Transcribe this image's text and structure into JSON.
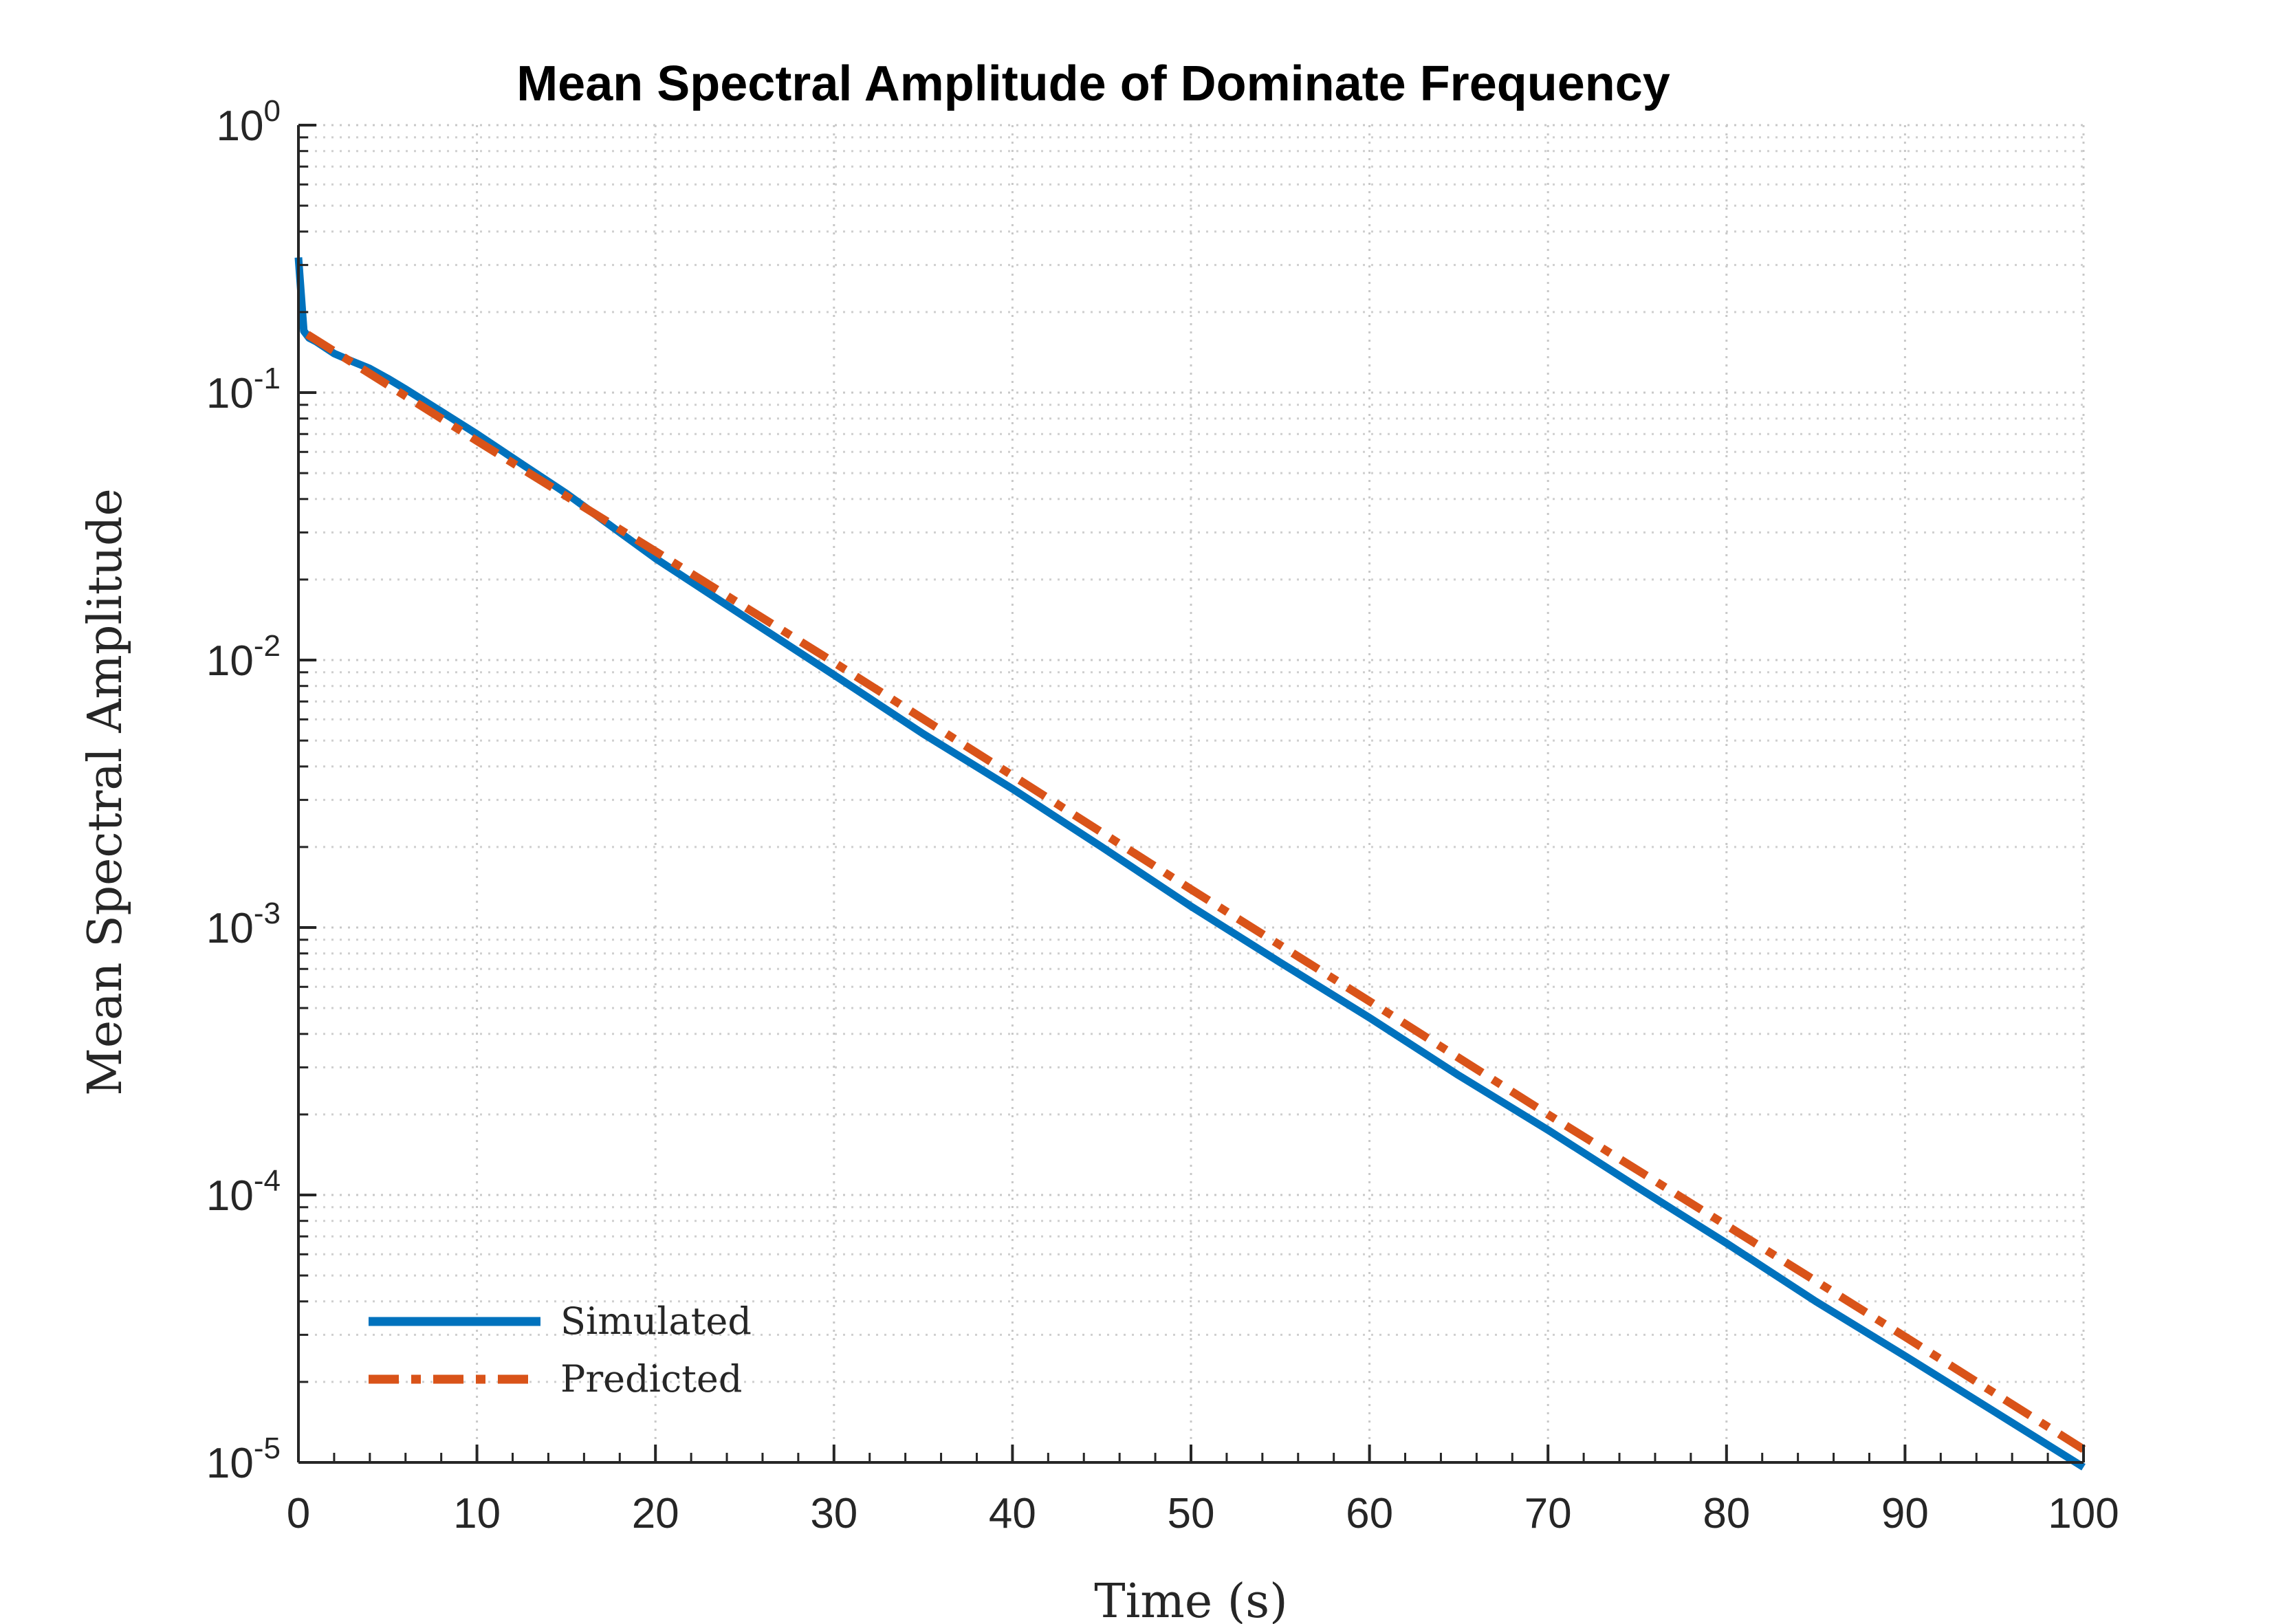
{
  "chart_data": {
    "type": "line",
    "title": "Mean Spectral Amplitude of Dominate Frequency",
    "xlabel": "Time (s)",
    "ylabel": "Mean Spectral Amplitude",
    "xlim": [
      0,
      100
    ],
    "ylim": [
      1e-05,
      1
    ],
    "yscale": "log",
    "grid": true,
    "minor_grid": true,
    "legend_position": "bottom-left",
    "x_ticks": [
      0,
      10,
      20,
      30,
      40,
      50,
      60,
      70,
      80,
      90,
      100
    ],
    "x_tick_labels": [
      "0",
      "10",
      "20",
      "30",
      "40",
      "50",
      "60",
      "70",
      "80",
      "90",
      "100"
    ],
    "y_ticks": [
      {
        "value": 1,
        "base": "10",
        "exp": "0"
      },
      {
        "value": 0.1,
        "base": "10",
        "exp": "-1"
      },
      {
        "value": 0.01,
        "base": "10",
        "exp": "-2"
      },
      {
        "value": 0.001,
        "base": "10",
        "exp": "-3"
      },
      {
        "value": 0.0001,
        "base": "10",
        "exp": "-4"
      },
      {
        "value": 1e-05,
        "base": "10",
        "exp": "-5"
      }
    ],
    "series": [
      {
        "name": "Simulated",
        "color": "#0072BD",
        "style": "solid",
        "x": [
          0,
          0.3,
          0.6,
          1,
          2,
          3,
          4,
          5,
          6,
          8,
          10,
          12,
          15,
          20,
          25,
          30,
          35,
          40,
          45,
          50,
          55,
          60,
          65,
          70,
          75,
          80,
          85,
          90,
          95,
          100
        ],
        "y": [
          0.32,
          0.17,
          0.16,
          0.155,
          0.14,
          0.131,
          0.123,
          0.113,
          0.103,
          0.085,
          0.07,
          0.057,
          0.042,
          0.024,
          0.0145,
          0.0088,
          0.0053,
          0.0033,
          0.002,
          0.0012,
          0.00074,
          0.00046,
          0.00028,
          0.000175,
          0.000107,
          6.6e-05,
          4e-05,
          2.5e-05,
          1.55e-05,
          9.6e-06
        ]
      },
      {
        "name": "Predicted",
        "color": "#D95319",
        "style": "dashdot",
        "x": [
          0.5,
          10,
          20,
          30,
          40,
          50,
          60,
          70,
          80,
          90,
          100
        ],
        "y": [
          0.165,
          0.066,
          0.0255,
          0.0098,
          0.0037,
          0.00139,
          0.00053,
          0.0002,
          7.7e-05,
          2.95e-05,
          1.12e-05
        ]
      }
    ]
  }
}
